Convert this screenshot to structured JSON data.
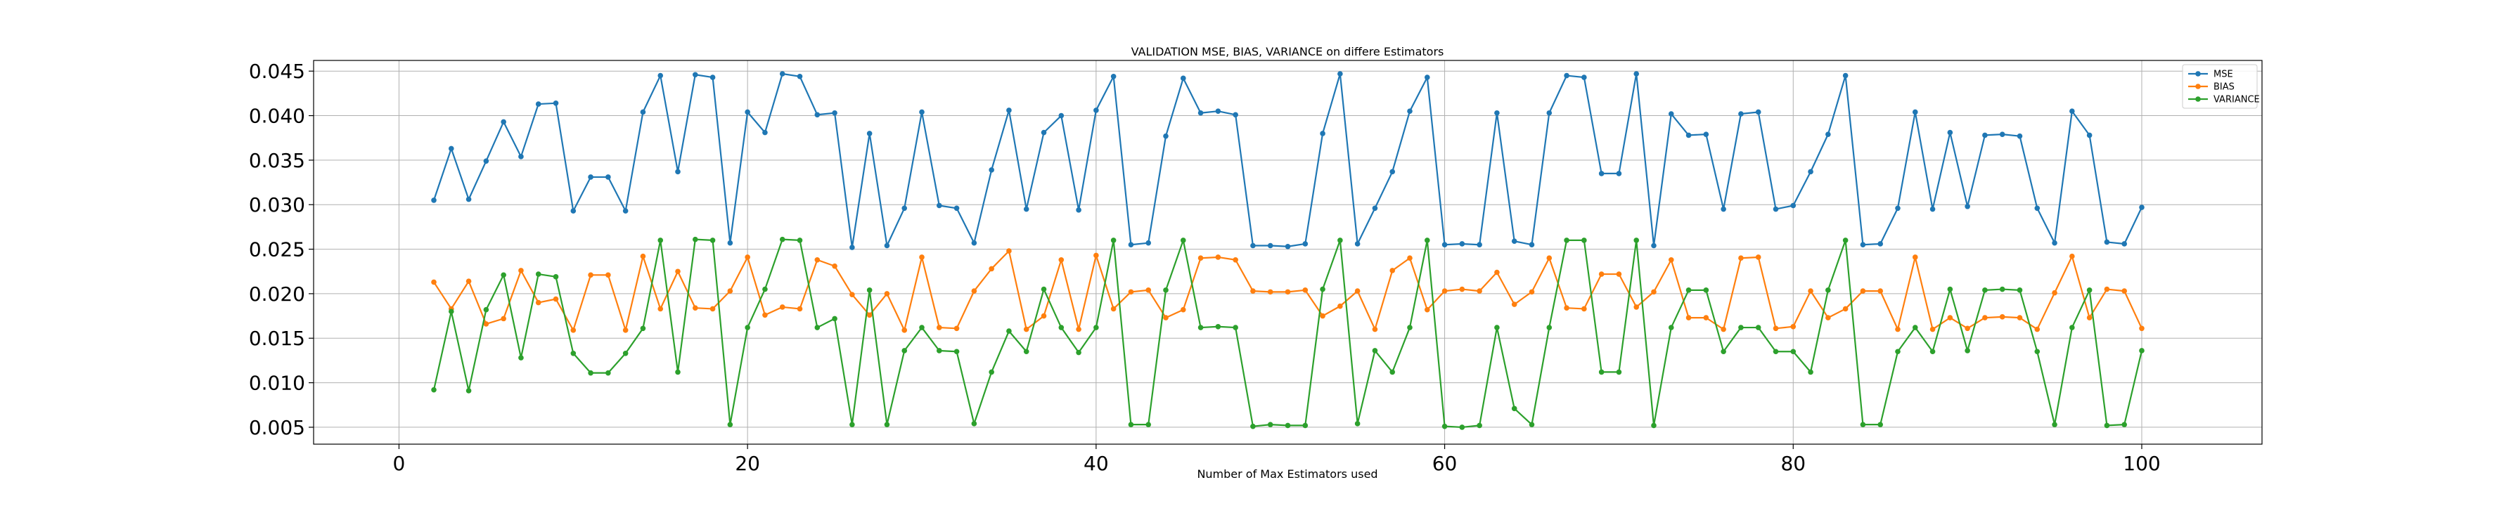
{
  "chart_data": {
    "type": "line",
    "title": "VALIDATION MSE, BIAS, VARIANCE on differe Estimators",
    "xlabel": "Number of Max Estimators used",
    "ylabel": "",
    "xlim": [
      -4.9,
      106.9
    ],
    "ylim": [
      0.0031,
      0.0462
    ],
    "xticks": [
      0,
      20,
      40,
      60,
      80,
      100
    ],
    "yticks": [
      0.005,
      0.01,
      0.015,
      0.02,
      0.025,
      0.03,
      0.035,
      0.04,
      0.045
    ],
    "xtick_labels": [
      "0",
      "20",
      "40",
      "60",
      "80",
      "100"
    ],
    "ytick_labels": [
      "0.005",
      "0.010",
      "0.015",
      "0.020",
      "0.025",
      "0.030",
      "0.035",
      "0.040",
      "0.045"
    ],
    "grid": true,
    "legend_position": "top-right",
    "x": [
      2,
      3,
      4,
      5,
      6,
      7,
      8,
      9,
      10,
      11,
      12,
      13,
      14,
      15,
      16,
      17,
      18,
      19,
      20,
      21,
      22,
      23,
      24,
      25,
      26,
      27,
      28,
      29,
      30,
      31,
      32,
      33,
      34,
      35,
      36,
      37,
      38,
      39,
      40,
      41,
      42,
      43,
      44,
      45,
      46,
      47,
      48,
      49,
      50,
      51,
      52,
      53,
      54,
      55,
      56,
      57,
      58,
      59,
      60,
      61,
      62,
      63,
      64,
      65,
      66,
      67,
      68,
      69,
      70,
      71,
      72,
      73,
      74,
      75,
      76,
      77,
      78,
      79,
      80,
      81,
      82,
      83,
      84,
      85,
      86,
      87,
      88,
      89,
      90,
      91,
      92,
      93,
      94,
      95,
      96,
      97,
      98,
      99,
      100
    ],
    "series": [
      {
        "name": "MSE",
        "color": "#1f77b4",
        "values": [
          0.0305,
          0.0363,
          0.0306,
          0.0349,
          0.0393,
          0.0354,
          0.0413,
          0.0414,
          0.0293,
          0.0331,
          0.0331,
          0.0293,
          0.0404,
          0.0445,
          0.0337,
          0.0446,
          0.0443,
          0.0257,
          0.0404,
          0.0381,
          0.0447,
          0.0444,
          0.0401,
          0.0403,
          0.0252,
          0.038,
          0.0254,
          0.0296,
          0.0404,
          0.0299,
          0.0296,
          0.0257,
          0.0339,
          0.0406,
          0.0295,
          0.0381,
          0.04,
          0.0294,
          0.0406,
          0.0444,
          0.0255,
          0.0257,
          0.0377,
          0.0442,
          0.0403,
          0.0405,
          0.0401,
          0.0254,
          0.0254,
          0.0253,
          0.0256,
          0.038,
          0.0447,
          0.0256,
          0.0296,
          0.0337,
          0.0405,
          0.0443,
          0.0255,
          0.0256,
          0.0255,
          0.0403,
          0.0259,
          0.0255,
          0.0403,
          0.0445,
          0.0443,
          0.0335,
          0.0335,
          0.0447,
          0.0254,
          0.0402,
          0.0378,
          0.0379,
          0.0295,
          0.0402,
          0.0404,
          0.0295,
          0.0299,
          0.0337,
          0.0379,
          0.0445,
          0.0255,
          0.0256,
          0.0296,
          0.0404,
          0.0295,
          0.0381,
          0.0298,
          0.0378,
          0.0379,
          0.0377,
          0.0296,
          0.0257,
          0.0405,
          0.0378,
          0.0258,
          0.0256,
          0.0297
        ]
      },
      {
        "name": "BIAS",
        "color": "#ff7f0e",
        "values": [
          0.0213,
          0.0183,
          0.0214,
          0.0166,
          0.0172,
          0.0226,
          0.019,
          0.0194,
          0.0159,
          0.0221,
          0.0221,
          0.0159,
          0.0242,
          0.0183,
          0.0225,
          0.0184,
          0.0183,
          0.0203,
          0.0241,
          0.0176,
          0.0185,
          0.0183,
          0.0238,
          0.0231,
          0.0199,
          0.0176,
          0.02,
          0.0159,
          0.0241,
          0.0162,
          0.0161,
          0.0203,
          0.0228,
          0.0248,
          0.016,
          0.0175,
          0.0238,
          0.016,
          0.0243,
          0.0183,
          0.0202,
          0.0204,
          0.0173,
          0.0182,
          0.024,
          0.0241,
          0.0238,
          0.0203,
          0.0202,
          0.0202,
          0.0204,
          0.0175,
          0.0186,
          0.0203,
          0.016,
          0.0226,
          0.024,
          0.0182,
          0.0203,
          0.0205,
          0.0203,
          0.0224,
          0.0188,
          0.0202,
          0.024,
          0.0184,
          0.0183,
          0.0222,
          0.0222,
          0.0185,
          0.0202,
          0.0238,
          0.0173,
          0.0173,
          0.016,
          0.024,
          0.0241,
          0.0161,
          0.0163,
          0.0203,
          0.0173,
          0.0183,
          0.0203,
          0.0203,
          0.016,
          0.0241,
          0.016,
          0.0173,
          0.0161,
          0.0173,
          0.0174,
          0.0173,
          0.016,
          0.0201,
          0.0242,
          0.0173,
          0.0205,
          0.0203,
          0.0161
        ]
      },
      {
        "name": "VARIANCE",
        "color": "#2ca02c",
        "values": [
          0.0092,
          0.018,
          0.0091,
          0.0182,
          0.0221,
          0.0128,
          0.0222,
          0.0219,
          0.0133,
          0.0111,
          0.0111,
          0.0133,
          0.0161,
          0.026,
          0.0112,
          0.0261,
          0.026,
          0.0053,
          0.0162,
          0.0205,
          0.0261,
          0.026,
          0.0162,
          0.0172,
          0.0053,
          0.0204,
          0.0053,
          0.0136,
          0.0162,
          0.0136,
          0.0135,
          0.0054,
          0.0112,
          0.0158,
          0.0135,
          0.0205,
          0.0162,
          0.0134,
          0.0162,
          0.026,
          0.0053,
          0.0053,
          0.0204,
          0.026,
          0.0162,
          0.0163,
          0.0162,
          0.0051,
          0.0053,
          0.0052,
          0.0052,
          0.0205,
          0.026,
          0.0054,
          0.0136,
          0.0112,
          0.0162,
          0.026,
          0.0051,
          0.005,
          0.0052,
          0.0162,
          0.0071,
          0.0053,
          0.0162,
          0.026,
          0.026,
          0.0112,
          0.0112,
          0.026,
          0.0052,
          0.0162,
          0.0204,
          0.0204,
          0.0135,
          0.0162,
          0.0162,
          0.0135,
          0.0135,
          0.0112,
          0.0204,
          0.026,
          0.0053,
          0.0053,
          0.0135,
          0.0162,
          0.0135,
          0.0205,
          0.0136,
          0.0204,
          0.0205,
          0.0204,
          0.0135,
          0.0053,
          0.0162,
          0.0204,
          0.0052,
          0.0053,
          0.0136
        ]
      }
    ]
  }
}
